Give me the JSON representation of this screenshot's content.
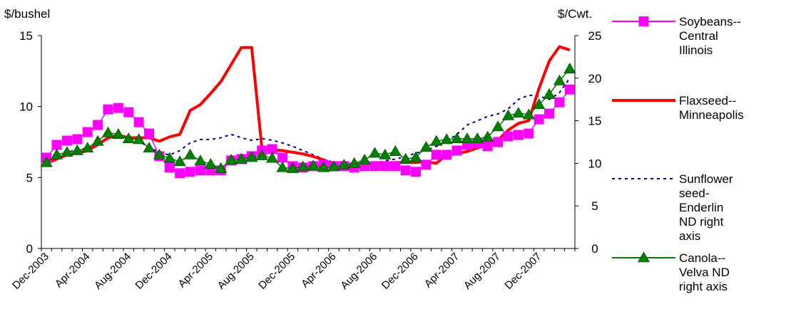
{
  "chart_data": {
    "type": "line",
    "left_axis_label": "$/bushel",
    "right_axis_label": "$/Cwt.",
    "y_left": {
      "min": 0,
      "max": 15,
      "ticks": [
        0,
        5,
        10,
        15
      ]
    },
    "y_right": {
      "min": 0,
      "max": 25,
      "ticks": [
        0,
        5,
        10,
        15,
        20,
        25
      ]
    },
    "x_tick_labels": [
      "Dec-2003",
      "Apr-2004",
      "Aug-2004",
      "Dec-2004",
      "Apr-2005",
      "Aug-2005",
      "Dec-2005",
      "Apr-2006",
      "Aug-2006",
      "Dec-2006",
      "Apr-2007",
      "Aug-2007",
      "Dec-2007"
    ],
    "months": [
      "Dec-2003",
      "Jan-2004",
      "Feb-2004",
      "Mar-2004",
      "Apr-2004",
      "May-2004",
      "Jun-2004",
      "Jul-2004",
      "Aug-2004",
      "Sep-2004",
      "Oct-2004",
      "Nov-2004",
      "Dec-2004",
      "Jan-2005",
      "Feb-2005",
      "Mar-2005",
      "Apr-2005",
      "May-2005",
      "Jun-2005",
      "Jul-2005",
      "Aug-2005",
      "Sep-2005",
      "Oct-2005",
      "Nov-2005",
      "Dec-2005",
      "Jan-2006",
      "Feb-2006",
      "Mar-2006",
      "Apr-2006",
      "May-2006",
      "Jun-2006",
      "Jul-2006",
      "Aug-2006",
      "Sep-2006",
      "Oct-2006",
      "Nov-2006",
      "Dec-2006",
      "Jan-2007",
      "Feb-2007",
      "Mar-2007",
      "Apr-2007",
      "May-2007",
      "Jun-2007",
      "Jul-2007",
      "Aug-2007",
      "Sep-2007",
      "Oct-2007",
      "Nov-2007",
      "Dec-2007",
      "Jan-2008",
      "Feb-2008",
      "Mar-2008"
    ],
    "series": [
      {
        "name": "Soybeans--Central Illinois",
        "axis": "left",
        "color": "#ff00ff",
        "marker": "square",
        "dash": "",
        "values": [
          6.4,
          7.3,
          7.6,
          7.7,
          8.2,
          8.7,
          9.8,
          9.9,
          9.6,
          8.9,
          8.1,
          6.5,
          5.7,
          5.3,
          5.4,
          5.5,
          5.5,
          5.5,
          6.2,
          6.3,
          6.5,
          6.9,
          7.0,
          6.4,
          5.8,
          5.7,
          5.8,
          5.9,
          5.8,
          5.8,
          5.7,
          5.8,
          5.8,
          5.8,
          5.8,
          5.5,
          5.4,
          5.9,
          6.6,
          6.6,
          6.9,
          7.3,
          7.4,
          7.2,
          7.5,
          7.9,
          8.0,
          8.1,
          9.1,
          9.5,
          10.3,
          11.2
        ]
      },
      {
        "name": "Flaxseed--Minneapolis",
        "axis": "right",
        "color": "#ff0000",
        "marker": "none",
        "dash": "",
        "values": [
          10.0,
          10.5,
          11.0,
          11.2,
          11.5,
          12.2,
          13.0,
          13.3,
          13.0,
          13.0,
          13.0,
          12.6,
          13.1,
          13.4,
          16.2,
          16.9,
          18.2,
          19.6,
          21.6,
          23.6,
          23.6,
          11.7,
          11.6,
          11.5,
          11.3,
          11.1,
          10.8,
          10.4,
          9.7,
          9.6,
          9.6,
          9.7,
          10.0,
          10.0,
          10.1,
          10.1,
          10.1,
          10.2,
          10.0,
          11.0,
          11.1,
          11.4,
          11.8,
          12.3,
          12.7,
          13.9,
          14.7,
          15.0,
          18.8,
          22.0,
          23.7,
          23.3
        ]
      },
      {
        "name": "Sunflower seed-Enderlin ND right axis",
        "axis": "right",
        "color": "#000080",
        "marker": "none",
        "dash": "4 5",
        "values": [
          10.2,
          10.8,
          11.3,
          11.6,
          11.8,
          12.2,
          13.0,
          13.3,
          12.9,
          12.5,
          12.0,
          11.2,
          11.0,
          11.5,
          12.4,
          12.8,
          12.8,
          13.0,
          13.4,
          13.0,
          12.7,
          12.9,
          12.7,
          12.4,
          12.0,
          11.5,
          11.0,
          10.5,
          10.1,
          9.8,
          9.8,
          10.0,
          10.0,
          10.3,
          10.5,
          10.8,
          11.2,
          11.5,
          12.0,
          12.6,
          13.4,
          14.5,
          15.0,
          15.5,
          15.8,
          16.4,
          17.5,
          18.0,
          17.9,
          17.5,
          18.3,
          20.0
        ]
      },
      {
        "name": "Canola--Velva ND right axis",
        "axis": "right",
        "color": "#008000",
        "marker": "triangle",
        "dash": "",
        "values": [
          10.1,
          11.0,
          11.3,
          11.5,
          11.8,
          12.6,
          13.6,
          13.4,
          12.9,
          12.8,
          11.8,
          11.0,
          10.6,
          10.2,
          11.0,
          10.3,
          9.9,
          9.4,
          10.4,
          10.5,
          10.7,
          10.9,
          10.6,
          9.5,
          9.4,
          9.6,
          9.7,
          9.5,
          9.6,
          9.8,
          10.0,
          10.4,
          11.2,
          11.0,
          11.4,
          10.5,
          10.7,
          11.9,
          12.6,
          12.8,
          12.9,
          12.9,
          12.9,
          13.1,
          14.3,
          15.6,
          15.9,
          15.7,
          16.9,
          18.1,
          19.7,
          21.1
        ]
      }
    ],
    "legend": [
      {
        "lines": [
          "Soybeans--",
          "Central",
          "Illinois"
        ]
      },
      {
        "lines": [
          "Flaxseed--",
          "Minneapolis"
        ]
      },
      {
        "lines": [
          "Sunflower",
          "seed-",
          "Enderlin",
          "ND right",
          "axis"
        ]
      },
      {
        "lines": [
          "Canola--",
          "Velva ND",
          "right axis"
        ]
      }
    ],
    "legend_position": "right",
    "grid": false
  }
}
